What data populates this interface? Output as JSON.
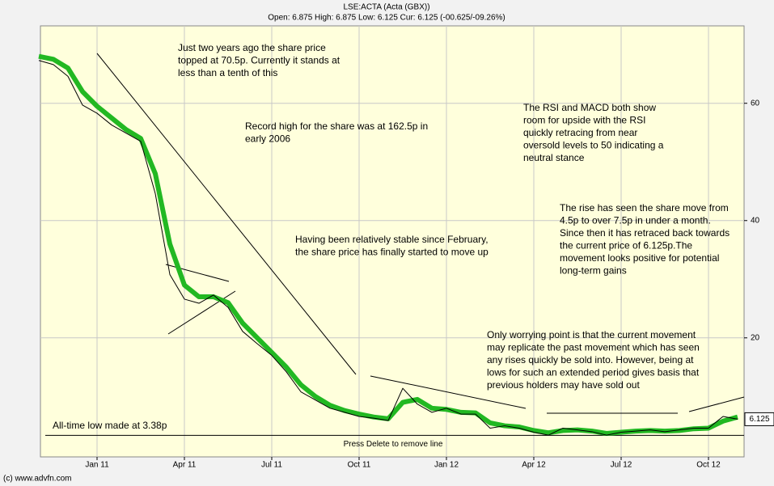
{
  "chart_data": {
    "type": "line",
    "title": "LSE:ACTA (Acta (GBX))",
    "subtitle": "Open: 6.875 High: 6.875 Low: 6.125 Cur: 6.125 (-00.625/-09.26%)",
    "categories": [
      null,
      null,
      null,
      null,
      "Jan 11",
      null,
      null,
      null,
      null,
      null,
      "Apr 11",
      null,
      null,
      null,
      null,
      null,
      "Jul 11",
      null,
      null,
      null,
      null,
      null,
      "Oct 11",
      null,
      null,
      null,
      null,
      null,
      "Jan 12",
      null,
      null,
      null,
      null,
      null,
      "Apr 12",
      null,
      null,
      null,
      null,
      null,
      "Jul 12",
      null,
      null,
      null,
      null,
      null,
      "Oct 12",
      null,
      null
    ],
    "series": [
      {
        "color": "#22b822",
        "values": [
          68,
          67.5,
          66,
          62,
          59.5,
          57.5,
          55.5,
          54,
          48,
          36,
          29,
          27,
          27,
          26,
          22.5,
          20,
          17.5,
          15,
          12,
          10,
          8.5,
          7.6,
          7,
          6.5,
          6.2,
          9,
          9.5,
          8,
          7.8,
          7.3,
          7.2,
          5.5,
          5,
          4.8,
          4.2,
          3.8,
          4.2,
          4.3,
          4.1,
          3.7,
          3.9,
          4.1,
          4.2,
          4.1,
          4.2,
          4.5,
          4.6,
          5.8,
          6.5
        ]
      },
      {
        "color": "#000000",
        "values": [
          67.3,
          66.6,
          64.6,
          59.7,
          58.3,
          56.3,
          54.9,
          53.5,
          44.6,
          30.8,
          26.6,
          25.9,
          27.3,
          25.2,
          21.1,
          19.0,
          17.0,
          14.2,
          10.8,
          9.4,
          8.0,
          7.3,
          6.6,
          6.3,
          5.9,
          11.4,
          8.7,
          7.3,
          8.0,
          7.0,
          7.0,
          4.6,
          5.0,
          4.6,
          3.9,
          3.4,
          4.6,
          4.3,
          4.0,
          3.4,
          3.9,
          4.1,
          4.3,
          4.0,
          4.3,
          4.6,
          4.6,
          6.6,
          6.125
        ]
      }
    ],
    "ylim": [
      -0.3,
      73.2
    ],
    "yticks": [
      20,
      40,
      60
    ],
    "grid": true,
    "current_price": 6.125,
    "low_line": 3.38,
    "delete_hint": "Press Delete to remove line",
    "copyright": "(c) www.advfn.com",
    "annotations": [
      {
        "lines": [
          "Just two years ago the share price",
          "topped at 70.5p. Currently it stands at",
          "less than a tenth of this"
        ]
      },
      {
        "lines": [
          "Record high for the share was at 162.5p in",
          "early 2006"
        ]
      },
      {
        "lines": [
          "The RSI and MACD both show",
          "room for upside with the RSI",
          "quickly retracing from near",
          "oversold levels to 50 indicating a",
          "neutral stance"
        ]
      },
      {
        "lines": [
          "The rise has seen the share move from",
          "4.5p to over 7.5p in under a month.",
          "Since then it has retraced back towards",
          "the current price of 6.125p.The",
          "movement looks positive for potential",
          "long-term gains"
        ]
      },
      {
        "lines": [
          "Having been relatively stable since February,",
          "the share price has finally started to move up"
        ]
      },
      {
        "lines": [
          "Only worrying point is that the current movement",
          "may replicate the past movement which has seen",
          "any rises quickly be sold into. However, being at",
          "lows for such an extended period gives basis that",
          "previous holders may have sold out"
        ]
      },
      {
        "lines": [
          "All-time low made at 3.38p"
        ]
      }
    ]
  }
}
